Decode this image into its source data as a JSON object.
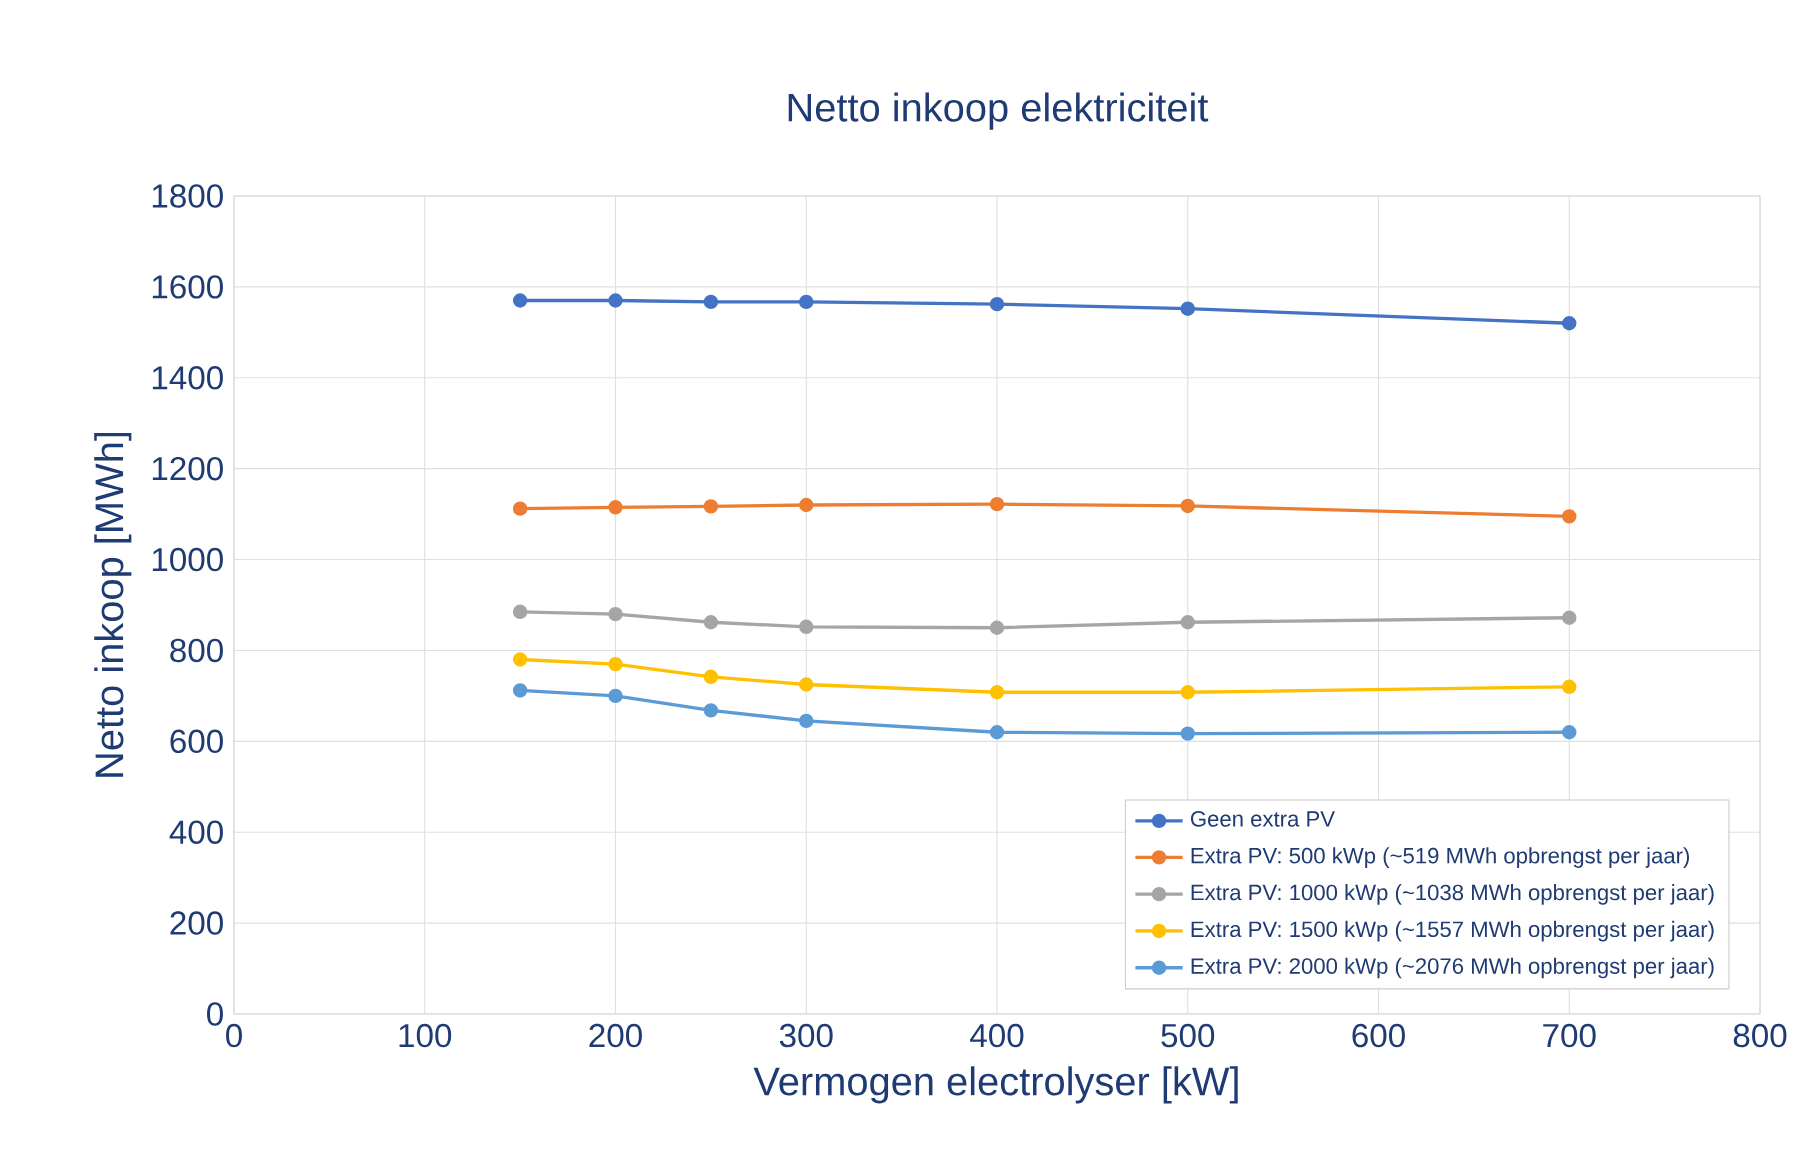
{
  "chart_data": {
    "type": "line",
    "title": "Netto inkoop elektriciteit",
    "xlabel": "Vermogen electrolyser [kW]",
    "ylabel": "Netto inkoop [MWh]",
    "x": [
      150,
      200,
      250,
      300,
      400,
      500,
      700
    ],
    "xlim": [
      0,
      800
    ],
    "xticks": [
      0,
      100,
      200,
      300,
      400,
      500,
      600,
      700,
      800
    ],
    "ylim": [
      0,
      1800
    ],
    "yticks": [
      0,
      200,
      400,
      600,
      800,
      1000,
      1200,
      1400,
      1600,
      1800
    ],
    "grid": true,
    "legend": "bottom right",
    "marker": "circle",
    "series": [
      {
        "name": "Geen extra PV",
        "color": "#4472c4",
        "values": [
          1570,
          1570,
          1567,
          1567,
          1562,
          1552,
          1520
        ]
      },
      {
        "name": "Extra PV: 500 kWp (~519 MWh opbrengst per jaar)",
        "color": "#ed7d31",
        "values": [
          1112,
          1115,
          1117,
          1120,
          1122,
          1118,
          1095
        ]
      },
      {
        "name": "Extra PV: 1000 kWp (~1038 MWh opbrengst per jaar)",
        "color": "#a5a5a5",
        "values": [
          885,
          880,
          862,
          852,
          850,
          862,
          872
        ]
      },
      {
        "name": "Extra PV: 1500 kWp (~1557 MWh opbrengst per jaar)",
        "color": "#ffc000",
        "values": [
          780,
          770,
          742,
          725,
          708,
          708,
          720
        ]
      },
      {
        "name": "Extra PV: 2000 kWp (~2076 MWh opbrengst per jaar)",
        "color": "#5b9bd5",
        "values": [
          712,
          700,
          668,
          645,
          620,
          617,
          620
        ]
      }
    ]
  }
}
